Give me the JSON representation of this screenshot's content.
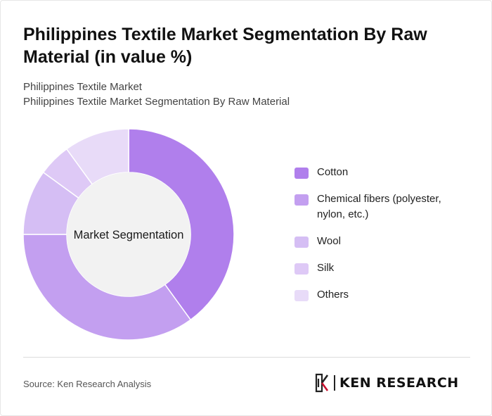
{
  "header": {
    "title": "Philippines Textile Market Segmentation By Raw Material (in value %)",
    "subtitle_1": "Philippines Textile Market",
    "subtitle_2": "Philippines Textile Market Segmentation By Raw Material"
  },
  "chart_data": {
    "type": "pie",
    "donut": true,
    "center_label": "Market Segmentation",
    "categories": [
      "Cotton",
      "Chemical fibers (polyester, nylon, etc.)",
      "Wool",
      "Silk",
      "Others"
    ],
    "values": [
      40,
      35,
      10,
      5,
      10
    ],
    "colors": [
      "#b07fec",
      "#c39ff0",
      "#d5bef4",
      "#dec9f6",
      "#e8dbf8"
    ],
    "legend_position": "right"
  },
  "footer": {
    "source": "Source: Ken Research Analysis",
    "logo_text": "KEN RESEARCH"
  }
}
